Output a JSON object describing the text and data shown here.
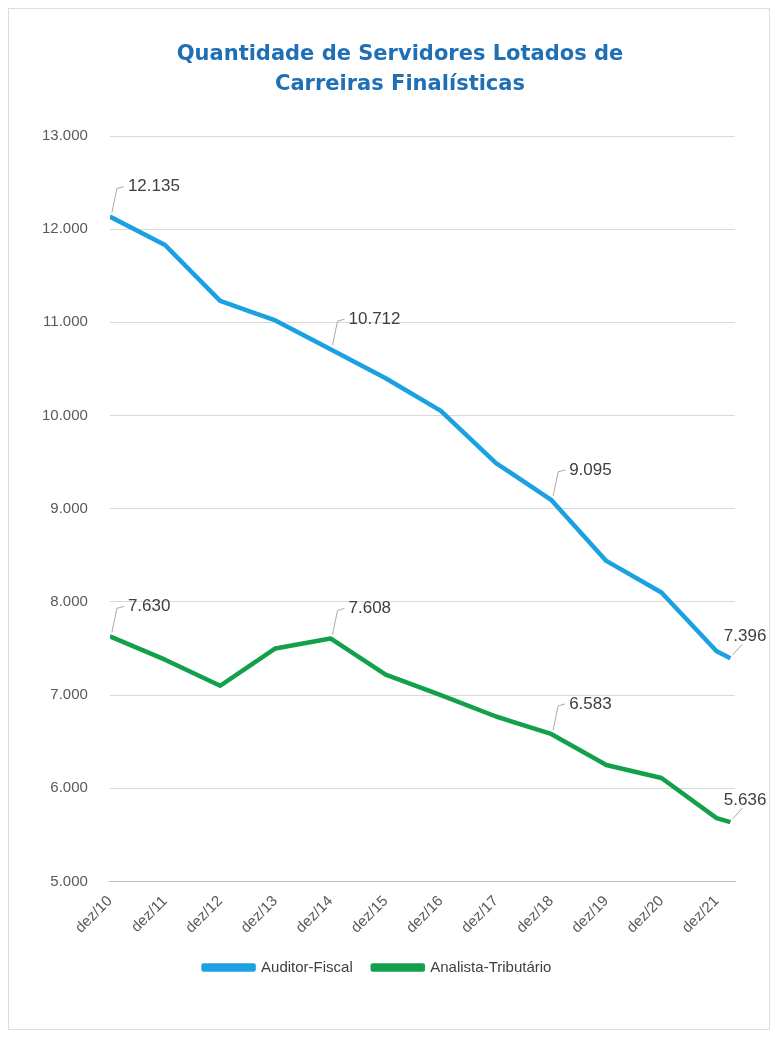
{
  "chart_data": {
    "type": "line",
    "title": "Quantidade  de Servidores  Lotados de Carreiras Finalísticas",
    "x": [
      "2010-12",
      "2011-12",
      "2012-12",
      "2013-12",
      "2014-12",
      "2015-12",
      "2016-12",
      "2017-12",
      "2018-12",
      "2019-12",
      "2020-12",
      "2021-12",
      "2022-03"
    ],
    "xlim": [
      "2010-12",
      "2022-04"
    ],
    "xticks": [
      {
        "value": "2010-12",
        "label": "dez/10"
      },
      {
        "value": "2011-12",
        "label": "dez/11"
      },
      {
        "value": "2012-12",
        "label": "dez/12"
      },
      {
        "value": "2013-12",
        "label": "dez/13"
      },
      {
        "value": "2014-12",
        "label": "dez/14"
      },
      {
        "value": "2015-12",
        "label": "dez/15"
      },
      {
        "value": "2016-12",
        "label": "dez/16"
      },
      {
        "value": "2017-12",
        "label": "dez/17"
      },
      {
        "value": "2018-12",
        "label": "dez/18"
      },
      {
        "value": "2019-12",
        "label": "dez/19"
      },
      {
        "value": "2020-12",
        "label": "dez/20"
      },
      {
        "value": "2021-12",
        "label": "dez/21"
      }
    ],
    "ylim": [
      5000,
      13000
    ],
    "yticks": [
      {
        "value": 5000,
        "label": "5.000"
      },
      {
        "value": 6000,
        "label": "6.000"
      },
      {
        "value": 7000,
        "label": "7.000"
      },
      {
        "value": 8000,
        "label": "8.000"
      },
      {
        "value": 9000,
        "label": "9.000"
      },
      {
        "value": 10000,
        "label": "10.000"
      },
      {
        "value": 11000,
        "label": "11.000"
      },
      {
        "value": 12000,
        "label": "12.000"
      },
      {
        "value": 13000,
        "label": "13.000"
      }
    ],
    "series": [
      {
        "name": "Auditor-Fiscal",
        "color": "#1ba1e2",
        "values": [
          12135,
          11830,
          11230,
          11020,
          10712,
          10400,
          10050,
          9490,
          9095,
          8440,
          8100,
          7470,
          7396
        ],
        "value_labels": [
          "12.135",
          null,
          null,
          null,
          "10.712",
          null,
          null,
          null,
          "9.095",
          null,
          null,
          null,
          "7.396"
        ]
      },
      {
        "name": "Analista-Tributário",
        "color": "#13a04a",
        "values": [
          7630,
          7380,
          7100,
          7500,
          7608,
          7220,
          7000,
          6770,
          6583,
          6250,
          6110,
          5680,
          5636
        ],
        "value_labels": [
          "7.630",
          null,
          null,
          null,
          "7.608",
          null,
          null,
          null,
          "6.583",
          null,
          null,
          null,
          "5.636"
        ]
      }
    ],
    "grid": "y",
    "legend": "bottom",
    "marker": "none",
    "line_style": "solid"
  }
}
